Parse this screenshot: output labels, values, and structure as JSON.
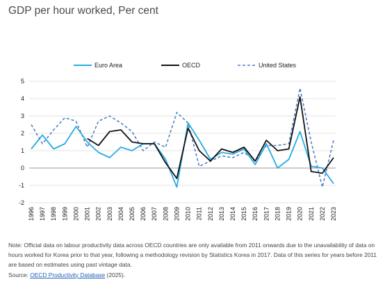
{
  "header": {
    "title": "GDP per hour worked, Per cent"
  },
  "chart_data": {
    "type": "line",
    "title": "",
    "xlabel": "",
    "ylabel": "",
    "categories": [
      "1996",
      "1997",
      "1998",
      "1999",
      "2000",
      "2001",
      "2002",
      "2003",
      "2004",
      "2005",
      "2006",
      "2007",
      "2008",
      "2009",
      "2010",
      "2011",
      "2012",
      "2013",
      "2014",
      "2015",
      "2016",
      "2017",
      "2018",
      "2019",
      "2020",
      "2021",
      "2022",
      "2023"
    ],
    "ylim": [
      -2,
      5
    ],
    "yticks": [
      5,
      4,
      3,
      2,
      1,
      0,
      -1,
      -2
    ],
    "grid": "horizontal",
    "legend_position": "top",
    "series": [
      {
        "name": "Euro Area",
        "color": "#29abe2",
        "dash": "solid",
        "values": [
          1.1,
          1.9,
          1.1,
          1.4,
          2.4,
          1.5,
          0.9,
          0.6,
          1.2,
          1.0,
          1.4,
          1.4,
          0.5,
          -1.1,
          2.6,
          1.6,
          0.5,
          0.9,
          0.8,
          1.1,
          0.2,
          1.4,
          0.0,
          0.5,
          2.1,
          0.1,
          0.0,
          -0.9
        ]
      },
      {
        "name": "OECD",
        "color": "#111111",
        "dash": "solid",
        "values": [
          null,
          null,
          null,
          null,
          null,
          1.7,
          1.3,
          2.1,
          2.2,
          1.5,
          1.4,
          1.4,
          0.3,
          -0.6,
          2.3,
          1.0,
          0.4,
          1.1,
          0.9,
          1.2,
          0.4,
          1.6,
          1.0,
          1.1,
          4.1,
          -0.2,
          -0.3,
          0.6
        ]
      },
      {
        "name": "United States",
        "color": "#4f7fc4",
        "dash": "dashed",
        "values": [
          2.5,
          1.4,
          2.2,
          2.9,
          2.7,
          1.2,
          2.7,
          3.0,
          2.6,
          2.1,
          1.0,
          1.5,
          1.2,
          3.2,
          2.6,
          0.1,
          0.4,
          0.7,
          0.6,
          0.9,
          0.4,
          1.3,
          1.3,
          1.4,
          4.6,
          1.5,
          -1.1,
          1.6
        ]
      }
    ]
  },
  "footer": {
    "note": "Note: Official data on labour productivity data across OECD countries are only available from 2011 onwards due to the unavailability of data on hours worked for Korea prior to that year, following a methodology revision by Statistics Korea in 2017. Data of this series for years before 2011 are based on estimates using past vintage data.",
    "source_prefix": "Source: ",
    "source_link": "OECD Productivity Database",
    "source_suffix": " (2025)."
  }
}
